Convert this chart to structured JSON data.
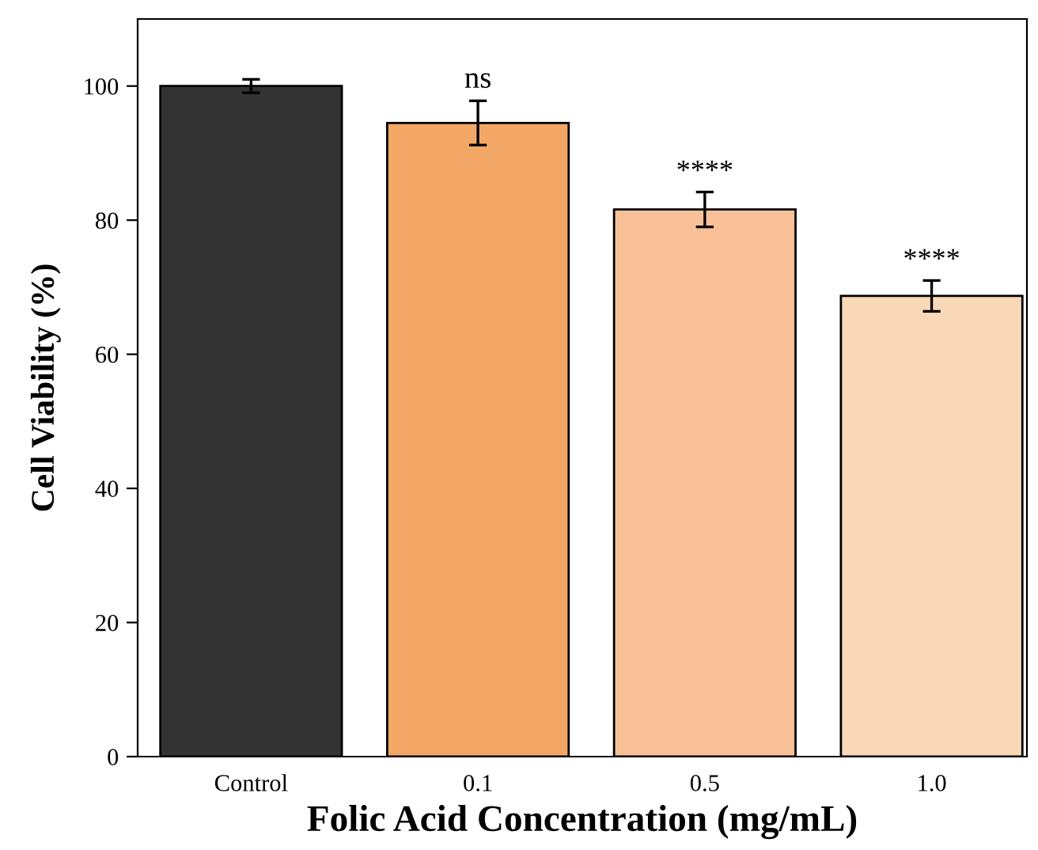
{
  "chart_data": {
    "type": "bar",
    "xlabel": "Folic Acid Concentration (mg/mL)",
    "ylabel": "Cell Viability (%)",
    "categories": [
      "Control",
      "0.1",
      "0.5",
      "1.0"
    ],
    "values": [
      100,
      94.5,
      81.6,
      68.7
    ],
    "errors": [
      1,
      3.3,
      2.6,
      2.3
    ],
    "colors": [
      "#333333",
      "#f2a766",
      "#f7c096",
      "#f9d8b8"
    ],
    "ylim": [
      0,
      110
    ],
    "yticks": [
      0,
      20,
      40,
      60,
      80,
      100
    ],
    "grid": false,
    "annotations": [
      {
        "text": "ns",
        "x": "0.1",
        "y": 97.8
      },
      {
        "text": "****",
        "x": "0.5",
        "y": 84.2
      },
      {
        "text": "****",
        "x": "1.0",
        "y": 71
      }
    ]
  }
}
